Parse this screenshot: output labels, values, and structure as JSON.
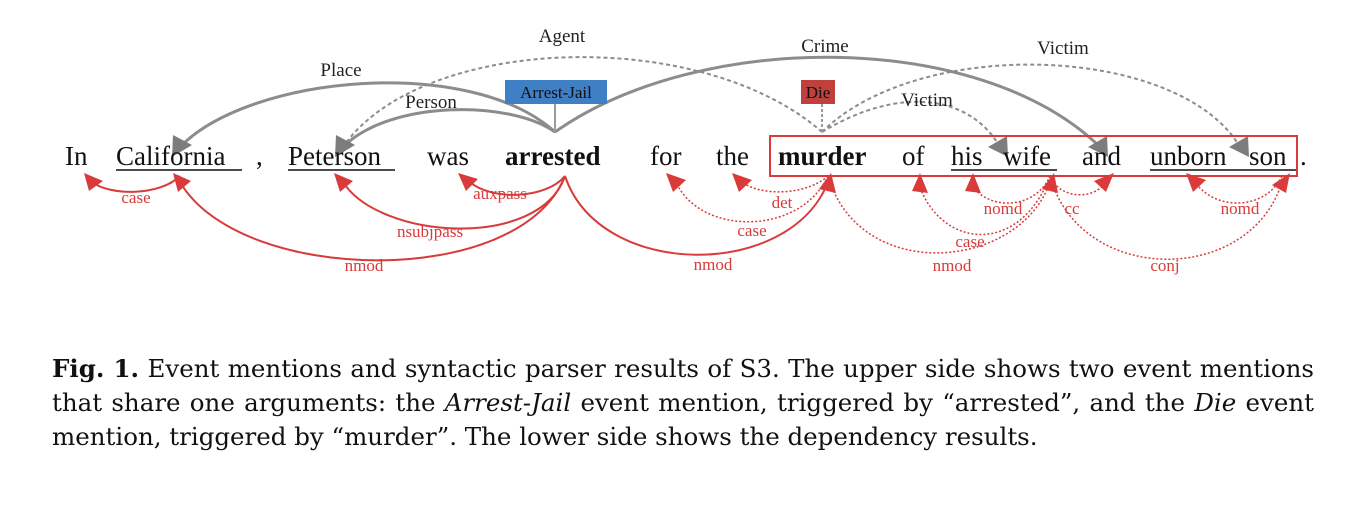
{
  "figure": {
    "tokens": [
      "In",
      "California",
      ",",
      "Peterson",
      "was",
      "arrested",
      "for",
      "the",
      "murder",
      "of",
      "his",
      "wife",
      "and",
      "unborn",
      "son",
      "."
    ],
    "triggers": [
      {
        "label": "Arrest-Jail",
        "color": "#3f7fc4"
      },
      {
        "label": "Die",
        "color": "#c0403e"
      }
    ],
    "argument_labels": [
      "Place",
      "Person",
      "Agent",
      "Crime",
      "Victim",
      "Victim"
    ],
    "dependency_labels": [
      "case",
      "auxpass",
      "nsubjpass",
      "nmod",
      "det",
      "case",
      "nmod",
      "nomd",
      "cc",
      "case",
      "nmod",
      "nomd",
      "conj"
    ],
    "colors": {
      "argument_arc": "#8c8c8c",
      "dependency_arc": "#d93a3a",
      "arrow_head": "#7d7d7d"
    }
  },
  "caption": {
    "fig_label": "Fig. 1.",
    "text_1": " Event mentions and syntactic parser results of S3. The upper side shows two event mentions that share one arguments: the ",
    "em_1": "Arrest-Jail",
    "text_2": " event mention, triggered by “arrested”, and the ",
    "em_2": "Die",
    "text_3": " event mention, triggered by “murder”. The lower side shows the dependency results."
  }
}
